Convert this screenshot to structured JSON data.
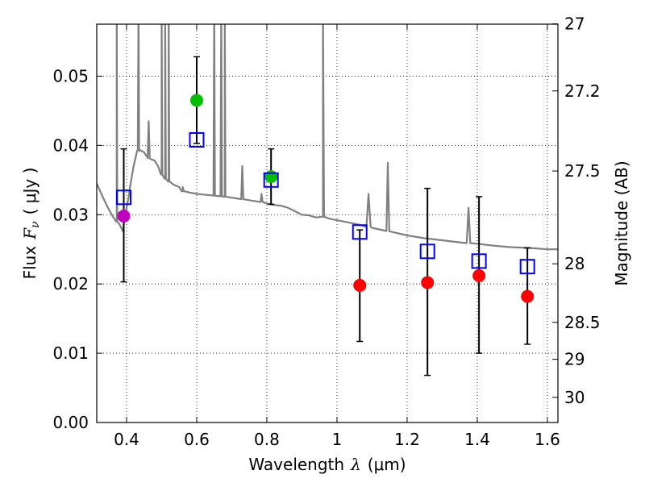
{
  "chart_data": {
    "type": "scatter",
    "xlabel_text": "Wavelength",
    "xlabel_symbol": "λ",
    "xlabel_unit": "(μm)",
    "ylabel_text": "Flux",
    "ylabel_symbol": "F",
    "ylabel_subscript": "ν",
    "ylabel_unit": "( μJy )",
    "y2label": "Magnitude (AB)",
    "xlim": [
      0.315,
      1.63
    ],
    "ylim": [
      0.0,
      0.0575
    ],
    "grid": true,
    "x_ticks": [
      0.4,
      0.6,
      0.8,
      1.0,
      1.2,
      1.4,
      1.6
    ],
    "x_tick_labels": [
      "0.4",
      "0.6",
      "0.8",
      "1",
      "1.2",
      "1.4",
      "1.6"
    ],
    "y_ticks": [
      0.0,
      0.01,
      0.02,
      0.03,
      0.04,
      0.05
    ],
    "y_tick_labels": [
      "0.00",
      "0.01",
      "0.02",
      "0.03",
      "0.04",
      "0.05"
    ],
    "mag_ticks": [
      27,
      27.2,
      27.5,
      28,
      28.5,
      29,
      30
    ],
    "mag_tick_labels": [
      "27",
      "27.2",
      "27.5",
      "28",
      "28.5",
      "29",
      "30"
    ],
    "observed": [
      {
        "x": 0.392,
        "y": 0.0298,
        "color": "#bf00bf"
      },
      {
        "x": 0.6,
        "y": 0.0465,
        "color": "#00bf00"
      },
      {
        "x": 0.812,
        "y": 0.0355,
        "color": "#00bf00"
      },
      {
        "x": 1.065,
        "y": 0.0198,
        "color": "#ff0000"
      },
      {
        "x": 1.258,
        "y": 0.0202,
        "color": "#ff0000"
      },
      {
        "x": 1.405,
        "y": 0.0212,
        "color": "#ff0000"
      },
      {
        "x": 1.543,
        "y": 0.0182,
        "color": "#ff0000"
      }
    ],
    "model": [
      {
        "x": 0.392,
        "y": 0.0325,
        "err_low": 0.0203,
        "err_high": 0.0395
      },
      {
        "x": 0.6,
        "y": 0.0408,
        "err_low": 0.0403,
        "err_high": 0.0528
      },
      {
        "x": 0.812,
        "y": 0.035,
        "err_low": 0.0315,
        "err_high": 0.0395
      },
      {
        "x": 1.065,
        "y": 0.0275,
        "err_low": 0.0117,
        "err_high": 0.0278
      },
      {
        "x": 1.258,
        "y": 0.0247,
        "err_low": 0.0068,
        "err_high": 0.0338
      },
      {
        "x": 1.405,
        "y": 0.0233,
        "err_low": 0.01,
        "err_high": 0.0326
      },
      {
        "x": 1.543,
        "y": 0.0225,
        "err_low": 0.0113,
        "err_high": 0.0252
      }
    ],
    "spectrum_color": "#808080",
    "model_marker_color": "#0000ff",
    "errorbar_color": "#000000",
    "spectrum_points": [
      [
        0.315,
        0.0345
      ],
      [
        0.33,
        0.0328
      ],
      [
        0.345,
        0.0312
      ],
      [
        0.36,
        0.0298
      ],
      [
        0.372,
        0.029
      ],
      [
        0.38,
        0.0286
      ],
      [
        0.385,
        0.0281
      ],
      [
        0.388,
        0.0278
      ],
      [
        0.39,
        0.0276
      ],
      [
        0.393,
        0.029
      ],
      [
        0.396,
        0.0291
      ],
      [
        0.4,
        0.031
      ],
      [
        0.405,
        0.0322
      ],
      [
        0.41,
        0.034
      ],
      [
        0.42,
        0.037
      ],
      [
        0.43,
        0.0392
      ],
      [
        0.44,
        0.0393
      ],
      [
        0.45,
        0.039
      ],
      [
        0.46,
        0.0382
      ],
      [
        0.47,
        0.038
      ],
      [
        0.48,
        0.0378
      ],
      [
        0.49,
        0.037
      ],
      [
        0.5,
        0.0358
      ],
      [
        0.51,
        0.0352
      ],
      [
        0.52,
        0.0348
      ],
      [
        0.535,
        0.0343
      ],
      [
        0.55,
        0.034
      ],
      [
        0.56,
        0.0334
      ],
      [
        0.58,
        0.0332
      ],
      [
        0.6,
        0.033
      ],
      [
        0.64,
        0.0328
      ],
      [
        0.68,
        0.0326
      ],
      [
        0.72,
        0.0323
      ],
      [
        0.76,
        0.032
      ],
      [
        0.79,
        0.0318
      ],
      [
        0.8,
        0.0316
      ],
      [
        0.82,
        0.0314
      ],
      [
        0.84,
        0.0313
      ],
      [
        0.86,
        0.031
      ],
      [
        0.88,
        0.0305
      ],
      [
        0.9,
        0.03
      ],
      [
        0.92,
        0.0299
      ],
      [
        0.94,
        0.0296
      ],
      [
        0.96,
        0.0297
      ],
      [
        0.98,
        0.0294
      ],
      [
        1.0,
        0.0292
      ],
      [
        1.03,
        0.0289
      ],
      [
        1.06,
        0.0286
      ],
      [
        1.1,
        0.0281
      ],
      [
        1.15,
        0.0276
      ],
      [
        1.2,
        0.027
      ],
      [
        1.25,
        0.0266
      ],
      [
        1.3,
        0.0263
      ],
      [
        1.35,
        0.026
      ],
      [
        1.4,
        0.0258
      ],
      [
        1.45,
        0.0255
      ],
      [
        1.5,
        0.0253
      ],
      [
        1.55,
        0.0252
      ],
      [
        1.6,
        0.025
      ],
      [
        1.63,
        0.025
      ]
    ],
    "emission_lines": [
      {
        "x": 0.372,
        "y": 0.06,
        "w": 0.0015
      },
      {
        "x": 0.434,
        "y": 0.06,
        "w": 0.002
      },
      {
        "x": 0.463,
        "y": 0.0435,
        "w": 0.003
      },
      {
        "x": 0.5,
        "y": 0.06,
        "w": 0.002
      },
      {
        "x": 0.51,
        "y": 0.06,
        "w": 0.002
      },
      {
        "x": 0.52,
        "y": 0.06,
        "w": 0.002
      },
      {
        "x": 0.56,
        "y": 0.034,
        "w": 0.003
      },
      {
        "x": 0.65,
        "y": 0.06,
        "w": 0.002
      },
      {
        "x": 0.67,
        "y": 0.06,
        "w": 0.002
      },
      {
        "x": 0.68,
        "y": 0.06,
        "w": 0.002
      },
      {
        "x": 0.73,
        "y": 0.037,
        "w": 0.003
      },
      {
        "x": 0.785,
        "y": 0.033,
        "w": 0.003
      },
      {
        "x": 0.96,
        "y": 0.06,
        "w": 0.003
      },
      {
        "x": 1.09,
        "y": 0.033,
        "w": 0.006
      },
      {
        "x": 1.145,
        "y": 0.0375,
        "w": 0.004
      },
      {
        "x": 1.375,
        "y": 0.031,
        "w": 0.005
      }
    ]
  }
}
